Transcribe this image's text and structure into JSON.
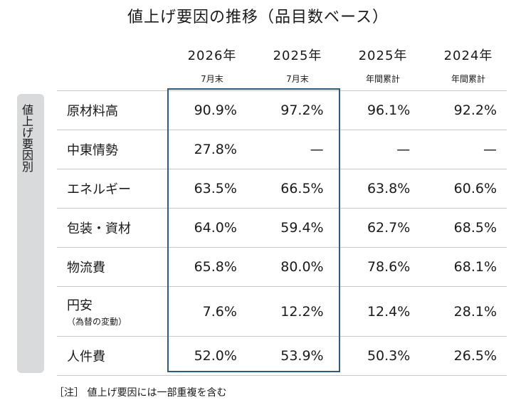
{
  "title": "値上げ要因の推移（品目数ベース）",
  "columns": [
    {
      "year": "2026年",
      "sub": "7月末"
    },
    {
      "year": "2025年",
      "sub": "7月末"
    },
    {
      "year": "2025年",
      "sub": "年間累計"
    },
    {
      "year": "2024年",
      "sub": "年間累計"
    }
  ],
  "sidebar_label": "値上げ要因別",
  "rows": [
    {
      "label": "原材料高",
      "note": "",
      "values": [
        "90.9%",
        "97.2%",
        "96.1%",
        "92.2%"
      ]
    },
    {
      "label": "中東情勢",
      "note": "",
      "values": [
        "27.8%",
        "—",
        "—",
        "—"
      ]
    },
    {
      "label": "エネルギー",
      "note": "",
      "values": [
        "63.5%",
        "66.5%",
        "63.8%",
        "60.6%"
      ]
    },
    {
      "label": "包装・資材",
      "note": "",
      "values": [
        "64.0%",
        "59.4%",
        "62.7%",
        "68.5%"
      ]
    },
    {
      "label": "物流費",
      "note": "",
      "values": [
        "65.8%",
        "80.0%",
        "78.6%",
        "68.1%"
      ]
    },
    {
      "label": "円安",
      "note": "（為替の変動）",
      "values": [
        "7.6%",
        "12.2%",
        "12.4%",
        "28.1%"
      ]
    },
    {
      "label": "人件費",
      "note": "",
      "values": [
        "52.0%",
        "53.9%",
        "50.3%",
        "26.5%"
      ]
    }
  ],
  "footnote": "［注］ 値上げ要因には一部重複を含む",
  "colors": {
    "highlight_border": "#2e5b7e",
    "sidebar_bg": "#d8dadc",
    "rule": "#c8c8c8"
  }
}
